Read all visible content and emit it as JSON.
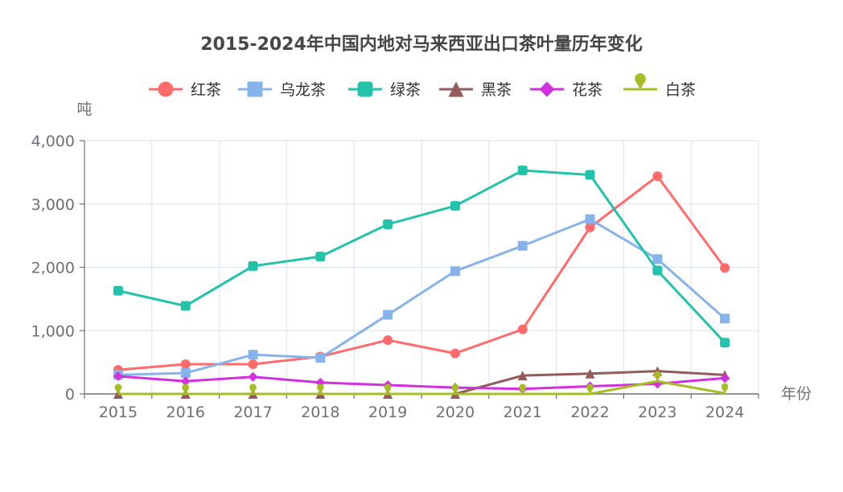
{
  "chart_data": {
    "type": "line",
    "title": "2015-2024年中国内地对马来西亚出口茶叶量历年变化",
    "xlabel": "年份",
    "ylabel": "吨",
    "categories": [
      "2015",
      "2016",
      "2017",
      "2018",
      "2019",
      "2020",
      "2021",
      "2022",
      "2023",
      "2024"
    ],
    "ylim": [
      0,
      4000
    ],
    "yticks": [
      0,
      1000,
      2000,
      3000,
      4000
    ],
    "ytick_labels": [
      "0",
      "1,000",
      "2,000",
      "3,000",
      "4,000"
    ],
    "grid": true,
    "legend_position": "top-center",
    "series": [
      {
        "name": "红茶",
        "color": "#ff6b6b",
        "marker": "circle",
        "values": [
          380,
          470,
          470,
          590,
          850,
          640,
          1020,
          2630,
          3440,
          1990
        ]
      },
      {
        "name": "乌龙茶",
        "color": "#86b4ea",
        "marker": "square",
        "values": [
          300,
          330,
          620,
          570,
          1250,
          1940,
          2340,
          2760,
          2130,
          1190
        ]
      },
      {
        "name": "绿茶",
        "color": "#22c3aa",
        "marker": "roundRect",
        "values": [
          1630,
          1390,
          2020,
          2170,
          2680,
          2970,
          3530,
          3460,
          1950,
          810
        ]
      },
      {
        "name": "黑茶",
        "color": "#955a5a",
        "marker": "triangle",
        "values": [
          0,
          0,
          0,
          0,
          0,
          0,
          290,
          320,
          360,
          300
        ]
      },
      {
        "name": "花茶",
        "color": "#d22fde",
        "marker": "diamond",
        "values": [
          280,
          200,
          270,
          180,
          140,
          100,
          80,
          120,
          160,
          250
        ]
      },
      {
        "name": "白茶",
        "color": "#a6bd24",
        "marker": "pin",
        "values": [
          0,
          0,
          0,
          0,
          0,
          0,
          0,
          0,
          200,
          10
        ]
      }
    ]
  }
}
